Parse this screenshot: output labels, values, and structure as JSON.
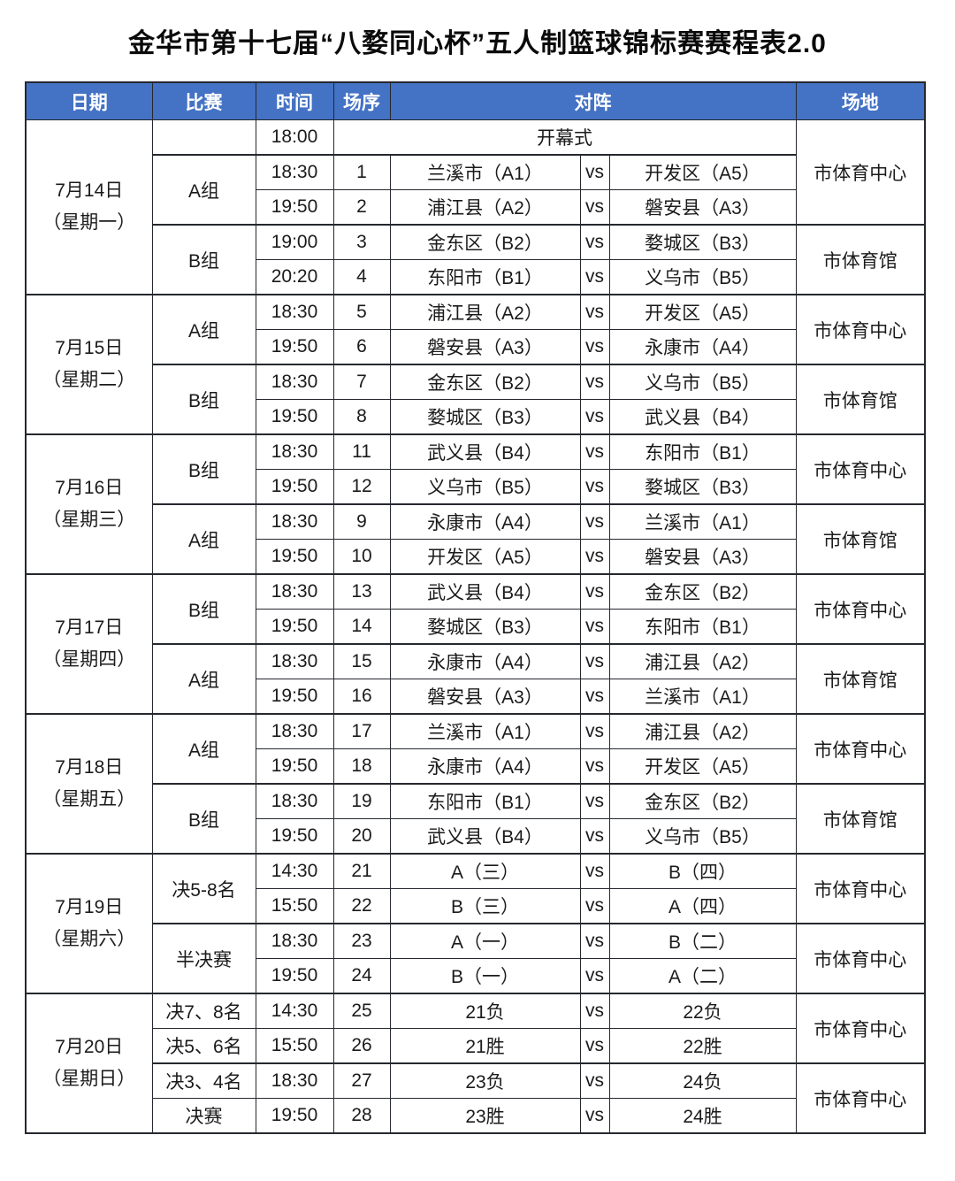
{
  "page": {
    "title": "金华市第十七届“八婺同心杯”五人制篮球锦标赛赛程表2.0"
  },
  "colors": {
    "header_bg": "#4472c4",
    "header_text": "#ffffff",
    "shaded_row": "#d9d9d9",
    "border": "#25282e",
    "page_bg": "#ffffff"
  },
  "header": {
    "date": "日期",
    "match": "比赛",
    "time": "时间",
    "seq": "场序",
    "matchup": "对阵",
    "venue": "场地"
  },
  "vs_label": "vs",
  "rows": [
    {
      "cls": "",
      "cells": [
        {
          "t": "7月14日\n（星期一）",
          "n": "date-cell",
          "c": "date",
          "rs": 5
        },
        {
          "t": "",
          "n": "group-cell",
          "c": "group"
        },
        {
          "t": "18:00",
          "n": "time-cell",
          "c": "time"
        },
        {
          "t": "开幕式",
          "n": "event-cell",
          "c": "event",
          "cs": 4
        },
        {
          "t": "市体育中心",
          "n": "venue-cell",
          "c": "venue",
          "rs": 3
        }
      ]
    },
    {
      "cls": "grp",
      "cells": [
        {
          "t": "A组",
          "n": "group-cell",
          "c": "group g",
          "rs": 2
        },
        {
          "t": "18:30",
          "n": "time-cell",
          "c": "time g"
        },
        {
          "t": "1",
          "n": "seq-cell",
          "c": "seq g"
        },
        {
          "t": "兰溪市（A1）",
          "n": "team-cell",
          "c": "team g"
        },
        {
          "t": "vs",
          "n": "vs-label",
          "c": "vs g"
        },
        {
          "t": "开发区（A5）",
          "n": "team-cell",
          "c": "team g"
        }
      ]
    },
    {
      "cls": "",
      "cells": [
        {
          "t": "19:50",
          "n": "time-cell",
          "c": "time g"
        },
        {
          "t": "2",
          "n": "seq-cell",
          "c": "seq g"
        },
        {
          "t": "浦江县（A2）",
          "n": "team-cell",
          "c": "team g"
        },
        {
          "t": "vs",
          "n": "vs-label",
          "c": "vs g"
        },
        {
          "t": "磐安县（A3）",
          "n": "team-cell",
          "c": "team g"
        }
      ]
    },
    {
      "cls": "grp",
      "cells": [
        {
          "t": "B组",
          "n": "group-cell",
          "c": "group",
          "rs": 2
        },
        {
          "t": "19:00",
          "n": "time-cell",
          "c": "time"
        },
        {
          "t": "3",
          "n": "seq-cell",
          "c": "seq"
        },
        {
          "t": "金东区（B2）",
          "n": "team-cell",
          "c": "team"
        },
        {
          "t": "vs",
          "n": "vs-label",
          "c": "vs"
        },
        {
          "t": "婺城区（B3）",
          "n": "team-cell",
          "c": "team"
        },
        {
          "t": "市体育馆",
          "n": "venue-cell",
          "c": "venue",
          "rs": 2
        }
      ]
    },
    {
      "cls": "",
      "cells": [
        {
          "t": "20:20",
          "n": "time-cell",
          "c": "time"
        },
        {
          "t": "4",
          "n": "seq-cell",
          "c": "seq"
        },
        {
          "t": "东阳市（B1）",
          "n": "team-cell",
          "c": "team"
        },
        {
          "t": "vs",
          "n": "vs-label",
          "c": "vs"
        },
        {
          "t": "义乌市（B5）",
          "n": "team-cell",
          "c": "team"
        }
      ]
    },
    {
      "cls": "day",
      "cells": [
        {
          "t": "7月15日\n（星期二）",
          "n": "date-cell",
          "c": "date",
          "rs": 4
        },
        {
          "t": "A组",
          "n": "group-cell",
          "c": "group g",
          "rs": 2
        },
        {
          "t": "18:30",
          "n": "time-cell",
          "c": "time g"
        },
        {
          "t": "5",
          "n": "seq-cell",
          "c": "seq g"
        },
        {
          "t": "浦江县（A2）",
          "n": "team-cell",
          "c": "team g"
        },
        {
          "t": "vs",
          "n": "vs-label",
          "c": "vs g"
        },
        {
          "t": "开发区（A5）",
          "n": "team-cell",
          "c": "team g"
        },
        {
          "t": "市体育中心",
          "n": "venue-cell",
          "c": "venue",
          "rs": 2
        }
      ]
    },
    {
      "cls": "",
      "cells": [
        {
          "t": "19:50",
          "n": "time-cell",
          "c": "time g"
        },
        {
          "t": "6",
          "n": "seq-cell",
          "c": "seq g"
        },
        {
          "t": "磐安县（A3）",
          "n": "team-cell",
          "c": "team g"
        },
        {
          "t": "vs",
          "n": "vs-label",
          "c": "vs g"
        },
        {
          "t": "永康市（A4）",
          "n": "team-cell",
          "c": "team g"
        }
      ]
    },
    {
      "cls": "grp",
      "cells": [
        {
          "t": "B组",
          "n": "group-cell",
          "c": "group",
          "rs": 2
        },
        {
          "t": "18:30",
          "n": "time-cell",
          "c": "time"
        },
        {
          "t": "7",
          "n": "seq-cell",
          "c": "seq"
        },
        {
          "t": "金东区（B2）",
          "n": "team-cell",
          "c": "team"
        },
        {
          "t": "vs",
          "n": "vs-label",
          "c": "vs"
        },
        {
          "t": "义乌市（B5）",
          "n": "team-cell",
          "c": "team"
        },
        {
          "t": "市体育馆",
          "n": "venue-cell",
          "c": "venue",
          "rs": 2
        }
      ]
    },
    {
      "cls": "",
      "cells": [
        {
          "t": "19:50",
          "n": "time-cell",
          "c": "time"
        },
        {
          "t": "8",
          "n": "seq-cell",
          "c": "seq"
        },
        {
          "t": "婺城区（B3）",
          "n": "team-cell",
          "c": "team"
        },
        {
          "t": "vs",
          "n": "vs-label",
          "c": "vs"
        },
        {
          "t": "武义县（B4）",
          "n": "team-cell",
          "c": "team"
        }
      ]
    },
    {
      "cls": "day",
      "cells": [
        {
          "t": "7月16日\n（星期三）",
          "n": "date-cell",
          "c": "date",
          "rs": 4
        },
        {
          "t": "B组",
          "n": "group-cell",
          "c": "group",
          "rs": 2
        },
        {
          "t": "18:30",
          "n": "time-cell",
          "c": "time"
        },
        {
          "t": "11",
          "n": "seq-cell",
          "c": "seq"
        },
        {
          "t": "武义县（B4）",
          "n": "team-cell",
          "c": "team"
        },
        {
          "t": "vs",
          "n": "vs-label",
          "c": "vs"
        },
        {
          "t": "东阳市（B1）",
          "n": "team-cell",
          "c": "team"
        },
        {
          "t": "市体育中心",
          "n": "venue-cell",
          "c": "venue",
          "rs": 2
        }
      ]
    },
    {
      "cls": "",
      "cells": [
        {
          "t": "19:50",
          "n": "time-cell",
          "c": "time"
        },
        {
          "t": "12",
          "n": "seq-cell",
          "c": "seq"
        },
        {
          "t": "义乌市（B5）",
          "n": "team-cell",
          "c": "team"
        },
        {
          "t": "vs",
          "n": "vs-label",
          "c": "vs"
        },
        {
          "t": "婺城区（B3）",
          "n": "team-cell",
          "c": "team"
        }
      ]
    },
    {
      "cls": "grp",
      "cells": [
        {
          "t": "A组",
          "n": "group-cell",
          "c": "group g",
          "rs": 2
        },
        {
          "t": "18:30",
          "n": "time-cell",
          "c": "time g"
        },
        {
          "t": "9",
          "n": "seq-cell",
          "c": "seq g"
        },
        {
          "t": "永康市（A4）",
          "n": "team-cell",
          "c": "team g"
        },
        {
          "t": "vs",
          "n": "vs-label",
          "c": "vs g"
        },
        {
          "t": "兰溪市（A1）",
          "n": "team-cell",
          "c": "team g"
        },
        {
          "t": "市体育馆",
          "n": "venue-cell",
          "c": "venue",
          "rs": 2
        }
      ]
    },
    {
      "cls": "",
      "cells": [
        {
          "t": "19:50",
          "n": "time-cell",
          "c": "time g"
        },
        {
          "t": "10",
          "n": "seq-cell",
          "c": "seq g"
        },
        {
          "t": "开发区（A5）",
          "n": "team-cell",
          "c": "team g"
        },
        {
          "t": "vs",
          "n": "vs-label",
          "c": "vs g"
        },
        {
          "t": "磐安县（A3）",
          "n": "team-cell",
          "c": "team g"
        }
      ]
    },
    {
      "cls": "day",
      "cells": [
        {
          "t": "7月17日\n（星期四）",
          "n": "date-cell",
          "c": "date",
          "rs": 4
        },
        {
          "t": "B组",
          "n": "group-cell",
          "c": "group",
          "rs": 2
        },
        {
          "t": "18:30",
          "n": "time-cell",
          "c": "time"
        },
        {
          "t": "13",
          "n": "seq-cell",
          "c": "seq"
        },
        {
          "t": "武义县（B4）",
          "n": "team-cell",
          "c": "team"
        },
        {
          "t": "vs",
          "n": "vs-label",
          "c": "vs"
        },
        {
          "t": "金东区（B2）",
          "n": "team-cell",
          "c": "team"
        },
        {
          "t": "市体育中心",
          "n": "venue-cell",
          "c": "venue",
          "rs": 2
        }
      ]
    },
    {
      "cls": "",
      "cells": [
        {
          "t": "19:50",
          "n": "time-cell",
          "c": "time"
        },
        {
          "t": "14",
          "n": "seq-cell",
          "c": "seq"
        },
        {
          "t": "婺城区（B3）",
          "n": "team-cell",
          "c": "team"
        },
        {
          "t": "vs",
          "n": "vs-label",
          "c": "vs"
        },
        {
          "t": "东阳市（B1）",
          "n": "team-cell",
          "c": "team"
        }
      ]
    },
    {
      "cls": "grp",
      "cells": [
        {
          "t": "A组",
          "n": "group-cell",
          "c": "group g",
          "rs": 2
        },
        {
          "t": "18:30",
          "n": "time-cell",
          "c": "time g"
        },
        {
          "t": "15",
          "n": "seq-cell",
          "c": "seq g"
        },
        {
          "t": "永康市（A4）",
          "n": "team-cell",
          "c": "team g"
        },
        {
          "t": "vs",
          "n": "vs-label",
          "c": "vs g"
        },
        {
          "t": "浦江县（A2）",
          "n": "team-cell",
          "c": "team g"
        },
        {
          "t": "市体育馆",
          "n": "venue-cell",
          "c": "venue",
          "rs": 2
        }
      ]
    },
    {
      "cls": "",
      "cells": [
        {
          "t": "19:50",
          "n": "time-cell",
          "c": "time g"
        },
        {
          "t": "16",
          "n": "seq-cell",
          "c": "seq g"
        },
        {
          "t": "磐安县（A3）",
          "n": "team-cell",
          "c": "team g"
        },
        {
          "t": "vs",
          "n": "vs-label",
          "c": "vs g"
        },
        {
          "t": "兰溪市（A1）",
          "n": "team-cell",
          "c": "team g"
        }
      ]
    },
    {
      "cls": "day",
      "cells": [
        {
          "t": "7月18日\n（星期五）",
          "n": "date-cell",
          "c": "date",
          "rs": 4
        },
        {
          "t": "A组",
          "n": "group-cell",
          "c": "group g",
          "rs": 2
        },
        {
          "t": "18:30",
          "n": "time-cell",
          "c": "time g"
        },
        {
          "t": "17",
          "n": "seq-cell",
          "c": "seq g"
        },
        {
          "t": "兰溪市（A1）",
          "n": "team-cell",
          "c": "team g"
        },
        {
          "t": "vs",
          "n": "vs-label",
          "c": "vs g"
        },
        {
          "t": "浦江县（A2）",
          "n": "team-cell",
          "c": "team g"
        },
        {
          "t": "市体育中心",
          "n": "venue-cell",
          "c": "venue",
          "rs": 2
        }
      ]
    },
    {
      "cls": "",
      "cells": [
        {
          "t": "19:50",
          "n": "time-cell",
          "c": "time g"
        },
        {
          "t": "18",
          "n": "seq-cell",
          "c": "seq g"
        },
        {
          "t": "永康市（A4）",
          "n": "team-cell",
          "c": "team g"
        },
        {
          "t": "vs",
          "n": "vs-label",
          "c": "vs g"
        },
        {
          "t": "开发区（A5）",
          "n": "team-cell",
          "c": "team g"
        }
      ]
    },
    {
      "cls": "grp",
      "cells": [
        {
          "t": "B组",
          "n": "group-cell",
          "c": "group",
          "rs": 2
        },
        {
          "t": "18:30",
          "n": "time-cell",
          "c": "time"
        },
        {
          "t": "19",
          "n": "seq-cell",
          "c": "seq"
        },
        {
          "t": "东阳市（B1）",
          "n": "team-cell",
          "c": "team"
        },
        {
          "t": "vs",
          "n": "vs-label",
          "c": "vs"
        },
        {
          "t": "金东区（B2）",
          "n": "team-cell",
          "c": "team"
        },
        {
          "t": "市体育馆",
          "n": "venue-cell",
          "c": "venue",
          "rs": 2
        }
      ]
    },
    {
      "cls": "",
      "cells": [
        {
          "t": "19:50",
          "n": "time-cell",
          "c": "time"
        },
        {
          "t": "20",
          "n": "seq-cell",
          "c": "seq"
        },
        {
          "t": "武义县（B4）",
          "n": "team-cell",
          "c": "team"
        },
        {
          "t": "vs",
          "n": "vs-label",
          "c": "vs"
        },
        {
          "t": "义乌市（B5）",
          "n": "team-cell",
          "c": "team"
        }
      ]
    },
    {
      "cls": "day",
      "cells": [
        {
          "t": "7月19日\n（星期六）",
          "n": "date-cell",
          "c": "date",
          "rs": 4
        },
        {
          "t": "决5-8名",
          "n": "group-cell",
          "c": "group",
          "rs": 2
        },
        {
          "t": "14:30",
          "n": "time-cell",
          "c": "time"
        },
        {
          "t": "21",
          "n": "seq-cell",
          "c": "seq"
        },
        {
          "t": "A（三）",
          "n": "team-cell",
          "c": "team"
        },
        {
          "t": "vs",
          "n": "vs-label",
          "c": "vs"
        },
        {
          "t": "B（四）",
          "n": "team-cell",
          "c": "team"
        },
        {
          "t": "市体育中心",
          "n": "venue-cell",
          "c": "venue",
          "rs": 2
        }
      ]
    },
    {
      "cls": "",
      "cells": [
        {
          "t": "15:50",
          "n": "time-cell",
          "c": "time"
        },
        {
          "t": "22",
          "n": "seq-cell",
          "c": "seq"
        },
        {
          "t": "B（三）",
          "n": "team-cell",
          "c": "team"
        },
        {
          "t": "vs",
          "n": "vs-label",
          "c": "vs"
        },
        {
          "t": "A（四）",
          "n": "team-cell",
          "c": "team"
        }
      ]
    },
    {
      "cls": "grp",
      "cells": [
        {
          "t": "半决赛",
          "n": "group-cell",
          "c": "group",
          "rs": 2
        },
        {
          "t": "18:30",
          "n": "time-cell",
          "c": "time"
        },
        {
          "t": "23",
          "n": "seq-cell",
          "c": "seq"
        },
        {
          "t": "A（一）",
          "n": "team-cell",
          "c": "team"
        },
        {
          "t": "vs",
          "n": "vs-label",
          "c": "vs"
        },
        {
          "t": "B（二）",
          "n": "team-cell",
          "c": "team"
        },
        {
          "t": "市体育中心",
          "n": "venue-cell",
          "c": "venue",
          "rs": 2
        }
      ]
    },
    {
      "cls": "",
      "cells": [
        {
          "t": "19:50",
          "n": "time-cell",
          "c": "time"
        },
        {
          "t": "24",
          "n": "seq-cell",
          "c": "seq"
        },
        {
          "t": "B（一）",
          "n": "team-cell",
          "c": "team"
        },
        {
          "t": "vs",
          "n": "vs-label",
          "c": "vs"
        },
        {
          "t": "A（二）",
          "n": "team-cell",
          "c": "team"
        }
      ]
    },
    {
      "cls": "day",
      "cells": [
        {
          "t": "7月20日\n（星期日）",
          "n": "date-cell",
          "c": "date",
          "rs": 4
        },
        {
          "t": "决7、8名",
          "n": "group-cell",
          "c": "group"
        },
        {
          "t": "14:30",
          "n": "time-cell",
          "c": "time"
        },
        {
          "t": "25",
          "n": "seq-cell",
          "c": "seq"
        },
        {
          "t": "21负",
          "n": "team-cell",
          "c": "team"
        },
        {
          "t": "vs",
          "n": "vs-label",
          "c": "vs"
        },
        {
          "t": "22负",
          "n": "team-cell",
          "c": "team"
        },
        {
          "t": "市体育中心",
          "n": "venue-cell",
          "c": "venue",
          "rs": 2
        }
      ]
    },
    {
      "cls": "",
      "cells": [
        {
          "t": "决5、6名",
          "n": "group-cell",
          "c": "group"
        },
        {
          "t": "15:50",
          "n": "time-cell",
          "c": "time"
        },
        {
          "t": "26",
          "n": "seq-cell",
          "c": "seq"
        },
        {
          "t": "21胜",
          "n": "team-cell",
          "c": "team"
        },
        {
          "t": "vs",
          "n": "vs-label",
          "c": "vs"
        },
        {
          "t": "22胜",
          "n": "team-cell",
          "c": "team"
        }
      ]
    },
    {
      "cls": "grp",
      "cells": [
        {
          "t": "决3、4名",
          "n": "group-cell",
          "c": "group"
        },
        {
          "t": "18:30",
          "n": "time-cell",
          "c": "time"
        },
        {
          "t": "27",
          "n": "seq-cell",
          "c": "seq"
        },
        {
          "t": "23负",
          "n": "team-cell",
          "c": "team"
        },
        {
          "t": "vs",
          "n": "vs-label",
          "c": "vs"
        },
        {
          "t": "24负",
          "n": "team-cell",
          "c": "team"
        },
        {
          "t": "市体育中心",
          "n": "venue-cell",
          "c": "venue",
          "rs": 2
        }
      ]
    },
    {
      "cls": "",
      "cells": [
        {
          "t": "决赛",
          "n": "group-cell",
          "c": "group"
        },
        {
          "t": "19:50",
          "n": "time-cell",
          "c": "time"
        },
        {
          "t": "28",
          "n": "seq-cell",
          "c": "seq"
        },
        {
          "t": "23胜",
          "n": "team-cell",
          "c": "team"
        },
        {
          "t": "vs",
          "n": "vs-label",
          "c": "vs"
        },
        {
          "t": "24胜",
          "n": "team-cell",
          "c": "team"
        }
      ]
    }
  ]
}
